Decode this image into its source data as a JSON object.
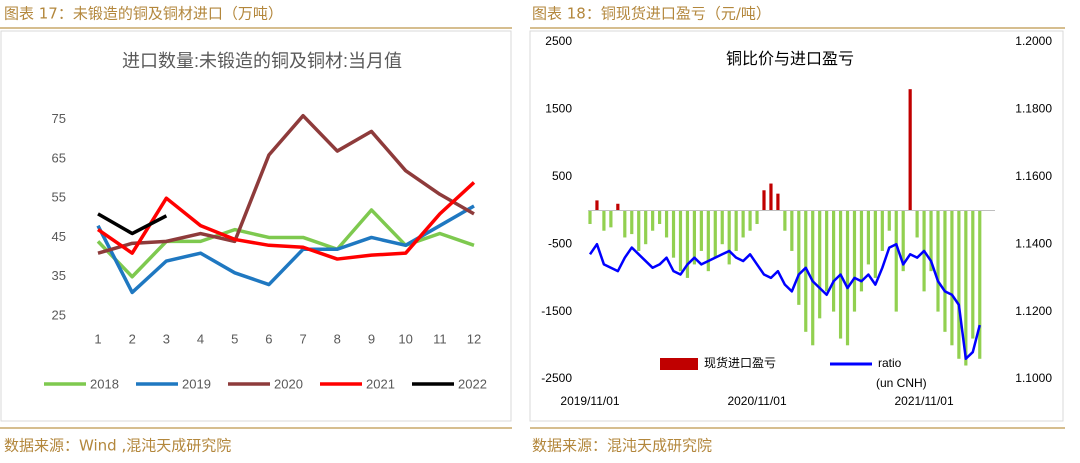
{
  "figures": [
    {
      "caption": "图表 17：未锻造的铜及铜材进口（万吨）",
      "source": "数据来源：Wind ,混沌天成研究院"
    },
    {
      "caption": "图表 18：铜现货进口盈亏（元/吨）",
      "source": "数据来源：混沌天成研究院"
    }
  ],
  "chart_data": [
    {
      "type": "line",
      "title": "进口数量:未锻造的铜及铜材:当月值",
      "categories": [
        "1",
        "2",
        "3",
        "4",
        "5",
        "6",
        "7",
        "8",
        "9",
        "10",
        "11",
        "12"
      ],
      "ylim": [
        25,
        80
      ],
      "yticks": [
        25,
        35,
        45,
        55,
        65,
        75
      ],
      "grid": false,
      "legend": "bottom",
      "series": [
        {
          "name": "2018",
          "color": "#7ec94f",
          "values": [
            44,
            35,
            44,
            44,
            47,
            45,
            45,
            42,
            52,
            43,
            46,
            43
          ]
        },
        {
          "name": "2019",
          "color": "#1f78c1",
          "values": [
            48,
            31,
            39,
            41,
            36,
            33,
            42,
            42,
            45,
            43,
            48,
            53
          ]
        },
        {
          "name": "2020",
          "color": "#8e3b3b",
          "values": [
            41,
            43.5,
            44,
            46,
            44,
            66,
            76,
            67,
            72,
            62,
            56,
            51
          ]
        },
        {
          "name": "2021",
          "color": "#ff0000",
          "values": [
            47,
            41,
            55,
            48,
            44.5,
            43,
            42.5,
            39.5,
            40.5,
            41,
            51,
            59
          ]
        },
        {
          "name": "2022",
          "color": "#000000",
          "values": [
            51,
            46,
            50.5,
            null,
            null,
            null,
            null,
            null,
            null,
            null,
            null,
            null
          ]
        }
      ]
    },
    {
      "type": "bar-line",
      "title": "铜比价与进口盈亏",
      "annotation": "(un CNH)",
      "categories": [
        "2019/11/01",
        null,
        null,
        null,
        null,
        null,
        null,
        null,
        null,
        null,
        null,
        null,
        null,
        null,
        null,
        null,
        null,
        null,
        null,
        null,
        null,
        null,
        null,
        null,
        "2020/11/01",
        null,
        null,
        null,
        null,
        null,
        null,
        null,
        null,
        null,
        null,
        null,
        null,
        null,
        null,
        null,
        null,
        null,
        null,
        null,
        null,
        null,
        null,
        null,
        "2021/11/01",
        null,
        null,
        null,
        null,
        null,
        null,
        null,
        null
      ],
      "ylim": [
        -2500,
        2500
      ],
      "yticks": [
        -2500,
        -1500,
        -500,
        500,
        1500,
        2500
      ],
      "y2lim": [
        1.1,
        1.2
      ],
      "y2ticks": [
        {
          "value": 1.1,
          "label": "1.1000"
        },
        {
          "value": 1.12,
          "label": "1.1200"
        },
        {
          "value": 1.14,
          "label": "1.1400"
        },
        {
          "value": 1.16,
          "label": "1.1600"
        },
        {
          "value": 1.18,
          "label": "1.1800"
        },
        {
          "value": 1.2,
          "label": "1.2000"
        }
      ],
      "legend": "bottom",
      "series": [
        {
          "name": "现货进口盈亏",
          "color": "#c00000",
          "negative_color": "#92d050",
          "values": [
            -200,
            150,
            -300,
            -250,
            100,
            -400,
            -350,
            -600,
            -500,
            -300,
            -200,
            -400,
            -700,
            -900,
            -1000,
            -800,
            -600,
            -900,
            -700,
            -500,
            -800,
            -600,
            -400,
            -300,
            -200,
            300,
            400,
            250,
            -300,
            -600,
            -1400,
            -1800,
            -2000,
            -1600,
            -1200,
            -1500,
            -1900,
            -2000,
            -1500,
            -1200,
            -800,
            -1000,
            -600,
            -300,
            -1500,
            -900,
            1800,
            -400,
            -1200,
            -900,
            -1500,
            -1800,
            -2000,
            -2200,
            -2300,
            -1900,
            -2200
          ]
        },
        {
          "name": "ratio",
          "color": "#0000ff",
          "axis": "y2",
          "values": [
            1.137,
            1.14,
            1.134,
            1.133,
            1.132,
            1.136,
            1.139,
            1.137,
            1.135,
            1.133,
            1.134,
            1.136,
            1.132,
            1.131,
            1.134,
            1.136,
            1.134,
            1.135,
            1.136,
            1.137,
            1.138,
            1.136,
            1.135,
            1.137,
            1.134,
            1.131,
            1.13,
            1.132,
            1.128,
            1.126,
            1.131,
            1.133,
            1.129,
            1.127,
            1.125,
            1.129,
            1.131,
            1.127,
            1.13,
            1.129,
            1.131,
            1.128,
            1.133,
            1.139,
            1.14,
            1.134,
            1.137,
            1.136,
            1.138,
            1.135,
            1.129,
            1.126,
            1.125,
            1.122,
            1.106,
            1.108,
            1.116
          ]
        }
      ]
    }
  ]
}
